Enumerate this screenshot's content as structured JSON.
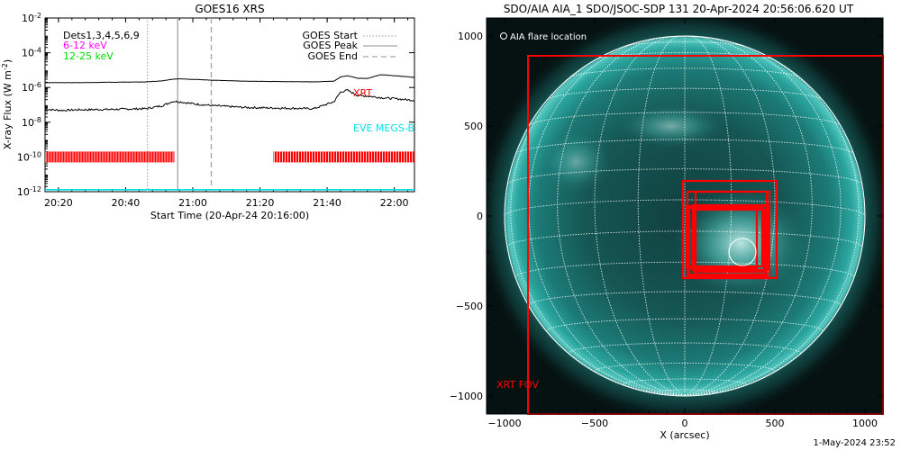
{
  "colors": {
    "goes_start": "#9a9a9a",
    "goes_peak": "#a8a8a8",
    "goes_end": "#a8a8a8",
    "xrt": "#ff0000",
    "eve": "#00e0e8",
    "low_channel": "#ff00ff",
    "high_channel": "#00dd00",
    "sun_tint": "#1c8a86"
  },
  "chart_data": [
    {
      "type": "line",
      "title": "GOES16 XRS",
      "xlabel": "Start Time (20-Apr-24 20:16:00)",
      "ylabel_prefix": "X-ray Flux (W m",
      "ylabel_sup": "-2",
      "ylabel_suffix": ")",
      "x_unit": "minutes after 20:16:00",
      "xlim": [
        0,
        110
      ],
      "ylog": true,
      "ylim": [
        1e-12,
        0.01
      ],
      "x_ticks": [
        {
          "label": "20:20",
          "x": 4
        },
        {
          "label": "20:40",
          "x": 24
        },
        {
          "label": "21:00",
          "x": 44
        },
        {
          "label": "21:20",
          "x": 64
        },
        {
          "label": "21:40",
          "x": 84
        },
        {
          "label": "22:00",
          "x": 104
        }
      ],
      "y_ticks": [
        {
          "base": "10",
          "exp": "-2",
          "value": 0.01
        },
        {
          "base": "10",
          "exp": "-4",
          "value": 0.0001
        },
        {
          "base": "10",
          "exp": "-6",
          "value": 1e-06
        },
        {
          "base": "10",
          "exp": "-8",
          "value": 1e-08
        },
        {
          "base": "10",
          "exp": "-10",
          "value": 1e-10
        },
        {
          "base": "10",
          "exp": "-12",
          "value": 1e-12
        }
      ],
      "legend": {
        "dets": "Dets1,3,4,5,6,9",
        "low_channel": "6-12 keV",
        "high_channel": "12-25 keV",
        "goes_start": "GOES Start",
        "goes_peak": "GOES Peak",
        "goes_end": "GOES End"
      },
      "markers": {
        "goes_start": 30.5,
        "goes_peak": 39.5,
        "goes_end": 49.5
      },
      "series": [
        {
          "key": "long",
          "x": [
            0,
            10,
            20,
            30,
            35,
            38,
            40,
            45,
            50,
            60,
            70,
            80,
            86,
            88,
            90,
            93,
            96,
            100,
            105,
            110
          ],
          "values": [
            1.9e-06,
            1.9e-06,
            2e-06,
            2.1e-06,
            2.4e-06,
            3e-06,
            3.2e-06,
            2.9e-06,
            2.6e-06,
            2.3e-06,
            2.2e-06,
            2.1e-06,
            2.3e-06,
            4e-06,
            4.8e-06,
            3.4e-06,
            3.3e-06,
            5.5e-06,
            4.6e-06,
            3.8e-06
          ]
        },
        {
          "key": "short",
          "x": [
            0,
            5,
            10,
            20,
            30,
            35,
            38,
            40,
            45,
            50,
            60,
            70,
            80,
            86,
            88,
            90,
            93,
            96,
            100,
            105,
            110
          ],
          "values": [
            5.5e-08,
            4.8e-08,
            5.2e-08,
            5.5e-08,
            6e-08,
            9e-08,
            1.6e-07,
            1.5e-07,
            1.1e-07,
            9e-08,
            7e-08,
            6.5e-08,
            6e-08,
            1.5e-07,
            5.5e-07,
            7e-07,
            3.5e-07,
            3.2e-07,
            2.6e-07,
            2.2e-07,
            1.8e-07
          ]
        },
        {
          "key": "eve",
          "x": [
            0,
            110
          ],
          "values": [
            1.3e-12,
            1.3e-12
          ]
        }
      ],
      "xrt_segments": [
        [
          0,
          38.5
        ],
        [
          68,
          110
        ]
      ],
      "xrt_level": 1e-10,
      "annotations": {
        "xrt": "XRT",
        "eve": "EVE MEGS-B"
      }
    },
    {
      "type": "heatmap",
      "title": "SDO/AIA AIA_1 SDO/JSOC-SDP 131 20-Apr-2024 20:56:06.620 UT",
      "xlabel": "X (arcsec)",
      "ylabel": "",
      "xlim": [
        -1100,
        1100
      ],
      "ylim": [
        -1100,
        1100
      ],
      "x_ticks": [
        -1000,
        -500,
        0,
        500,
        1000
      ],
      "x_tick_labels": [
        "−1000",
        "−500",
        "0",
        "500",
        "1000"
      ],
      "y_ticks": [
        1000,
        500,
        0,
        -500,
        -1000
      ],
      "y_tick_labels": [
        "1000",
        "500",
        "0",
        "−500",
        "−1000"
      ],
      "solar_radius": 1000,
      "legend_text": "AIA flare location",
      "xrt_fov_label": "XRT FOV",
      "flare_location": [
        320,
        -200
      ],
      "xrt_fov": [
        -870,
        -1100,
        1100,
        890
      ],
      "xrt_boxes": [
        [
          -10,
          -345,
          510,
          195
        ],
        [
          15,
          -335,
          455,
          135
        ],
        [
          60,
          -345,
          470,
          135
        ],
        [
          25,
          -325,
          450,
          55
        ],
        [
          10,
          -290,
          400,
          55
        ],
        [
          50,
          -310,
          440,
          35
        ],
        [
          20,
          -280,
          430,
          45
        ],
        [
          45,
          -300,
          460,
          60
        ]
      ],
      "footer": "1-May-2024 23:52"
    }
  ]
}
